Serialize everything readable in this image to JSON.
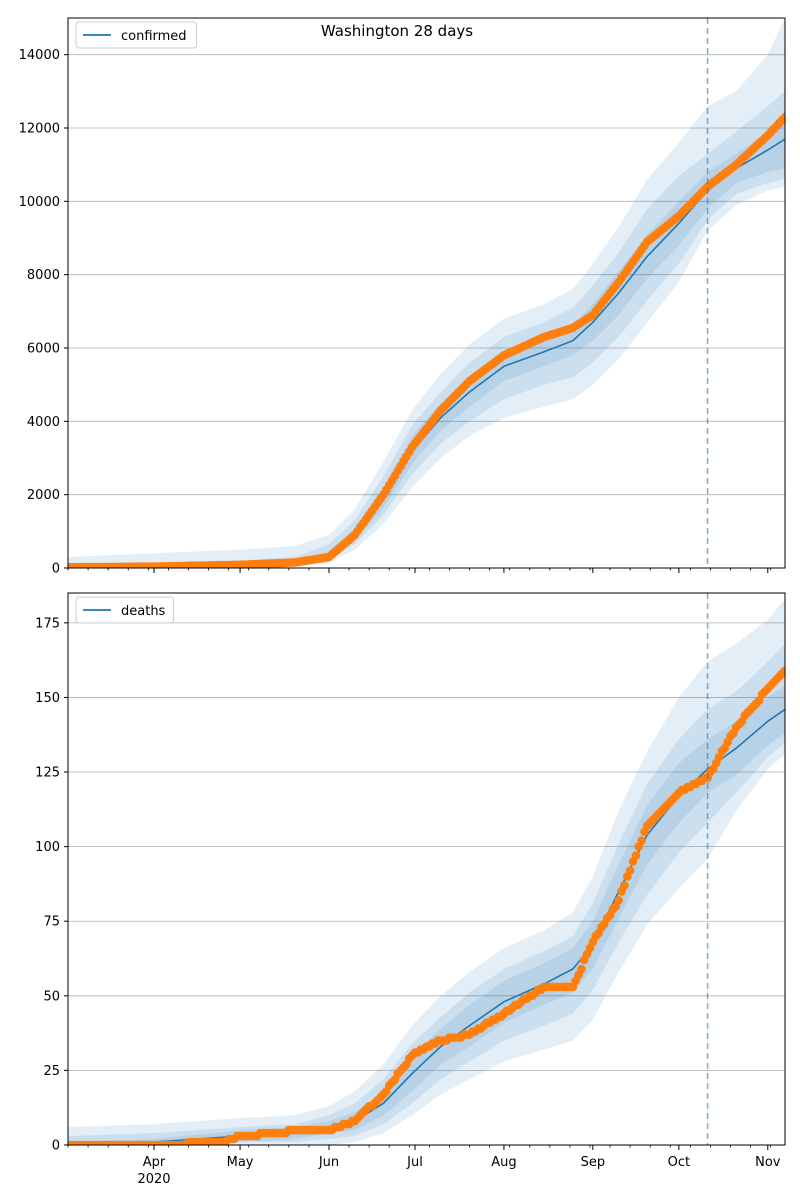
{
  "figure": {
    "title": "Washington 28 days",
    "colors": {
      "model": "#1f77b4",
      "observed": "#ff7f0e",
      "band": "#1f77b4",
      "grid": "#b0b0b0"
    }
  },
  "chart_data": [
    {
      "type": "line",
      "xaxis": {
        "type": "date",
        "range": [
          "2020-03-02",
          "2020-11-07"
        ],
        "ticks": [
          {
            "date": "2020-04-01",
            "label": "Apr",
            "sublabel": "2020"
          },
          {
            "date": "2020-05-01",
            "label": "May"
          },
          {
            "date": "2020-06-01",
            "label": "Jun"
          },
          {
            "date": "2020-07-01",
            "label": "Jul"
          },
          {
            "date": "2020-08-01",
            "label": "Aug"
          },
          {
            "date": "2020-09-01",
            "label": "Sep"
          },
          {
            "date": "2020-10-01",
            "label": "Oct"
          },
          {
            "date": "2020-11-01",
            "label": "Nov"
          }
        ]
      },
      "ylim": [
        0,
        15000
      ],
      "yticks": [
        0,
        2000,
        4000,
        6000,
        8000,
        10000,
        12000,
        14000
      ],
      "grid": "horizontal",
      "legend": {
        "entries": [
          "confirmed"
        ],
        "placement": "top-left"
      },
      "forecast_start": "2020-10-11",
      "model": {
        "name": "confirmed",
        "points": [
          [
            "2020-03-02",
            20
          ],
          [
            "2020-04-01",
            40
          ],
          [
            "2020-05-01",
            90
          ],
          [
            "2020-05-20",
            150
          ],
          [
            "2020-06-01",
            350
          ],
          [
            "2020-06-10",
            900
          ],
          [
            "2020-06-20",
            1900
          ],
          [
            "2020-06-30",
            3200
          ],
          [
            "2020-07-10",
            4100
          ],
          [
            "2020-07-20",
            4800
          ],
          [
            "2020-08-01",
            5500
          ],
          [
            "2020-08-15",
            5900
          ],
          [
            "2020-08-25",
            6200
          ],
          [
            "2020-09-01",
            6700
          ],
          [
            "2020-09-10",
            7500
          ],
          [
            "2020-09-20",
            8500
          ],
          [
            "2020-10-01",
            9400
          ],
          [
            "2020-10-11",
            10300
          ],
          [
            "2020-10-21",
            10900
          ],
          [
            "2020-11-01",
            11400
          ],
          [
            "2020-11-07",
            11700
          ]
        ],
        "bands": [
          {
            "level": "outer",
            "lower": [
              0,
              0,
              0,
              20,
              150,
              500,
              1200,
              2200,
              3000,
              3600,
              4100,
              4400,
              4600,
              5000,
              5700,
              6700,
              7800,
              9200,
              9900,
              10300,
              10400
            ],
            "upper": [
              300,
              400,
              500,
              600,
              900,
              1600,
              2900,
              4300,
              5300,
              6100,
              6800,
              7200,
              7600,
              8300,
              9300,
              10600,
              11600,
              12600,
              13000,
              14000,
              15000
            ]
          },
          {
            "level": "middle",
            "lower": [
              0,
              10,
              40,
              70,
              220,
              650,
              1450,
              2550,
              3400,
              4000,
              4600,
              5000,
              5200,
              5600,
              6300,
              7300,
              8300,
              9500,
              10200,
              10500,
              10600
            ],
            "upper": [
              100,
              150,
              200,
              300,
              650,
              1300,
              2500,
              3900,
              4800,
              5600,
              6300,
              6700,
              7100,
              7700,
              8600,
              9800,
              10700,
              11300,
              11900,
              12600,
              13000
            ]
          },
          {
            "level": "inner",
            "lower": [
              10,
              30,
              70,
              120,
              280,
              750,
              1650,
              2850,
              3750,
              4400,
              5100,
              5500,
              5800,
              6200,
              6900,
              7900,
              8800,
              9800,
              10500,
              10800,
              10900
            ],
            "upper": [
              40,
              60,
              120,
              200,
              450,
              1100,
              2200,
              3600,
              4500,
              5200,
              5900,
              6300,
              6600,
              7200,
              8100,
              9100,
              10000,
              10800,
              11300,
              11900,
              12300
            ]
          }
        ]
      },
      "observed": {
        "dates": [
          "2020-03-02",
          "2020-04-01",
          "2020-05-01",
          "2020-05-20",
          "2020-06-01",
          "2020-06-10",
          "2020-06-20",
          "2020-06-30",
          "2020-07-10",
          "2020-07-20",
          "2020-08-01",
          "2020-08-15",
          "2020-08-25",
          "2020-09-01",
          "2020-09-10",
          "2020-09-20",
          "2020-10-01",
          "2020-10-11",
          "2020-10-21",
          "2020-11-01",
          "2020-11-07"
        ],
        "values": [
          20,
          40,
          90,
          150,
          300,
          900,
          2000,
          3300,
          4300,
          5100,
          5800,
          6300,
          6550,
          6900,
          7800,
          8900,
          9600,
          10400,
          11000,
          11800,
          12300
        ]
      }
    },
    {
      "type": "line",
      "xaxis": {
        "type": "date",
        "range": [
          "2020-03-02",
          "2020-11-07"
        ],
        "ticks": [
          {
            "date": "2020-04-01",
            "label": "Apr",
            "sublabel": "2020"
          },
          {
            "date": "2020-05-01",
            "label": "May"
          },
          {
            "date": "2020-06-01",
            "label": "Jun"
          },
          {
            "date": "2020-07-01",
            "label": "Jul"
          },
          {
            "date": "2020-08-01",
            "label": "Aug"
          },
          {
            "date": "2020-09-01",
            "label": "Sep"
          },
          {
            "date": "2020-10-01",
            "label": "Oct"
          },
          {
            "date": "2020-11-01",
            "label": "Nov"
          }
        ]
      },
      "ylim": [
        0,
        185
      ],
      "yticks": [
        0,
        25,
        50,
        75,
        100,
        125,
        150,
        175
      ],
      "grid": "horizontal",
      "legend": {
        "entries": [
          "deaths"
        ],
        "placement": "top-left"
      },
      "forecast_start": "2020-10-11",
      "model": {
        "name": "deaths",
        "points": [
          [
            "2020-03-02",
            0
          ],
          [
            "2020-04-01",
            1
          ],
          [
            "2020-05-01",
            3
          ],
          [
            "2020-05-20",
            4
          ],
          [
            "2020-06-01",
            6
          ],
          [
            "2020-06-10",
            8
          ],
          [
            "2020-06-20",
            14
          ],
          [
            "2020-06-30",
            24
          ],
          [
            "2020-07-10",
            33
          ],
          [
            "2020-07-20",
            40
          ],
          [
            "2020-08-01",
            48
          ],
          [
            "2020-08-15",
            54
          ],
          [
            "2020-08-25",
            59
          ],
          [
            "2020-09-01",
            67
          ],
          [
            "2020-09-10",
            85
          ],
          [
            "2020-09-20",
            104
          ],
          [
            "2020-10-01",
            117
          ],
          [
            "2020-10-11",
            126
          ],
          [
            "2020-10-21",
            133
          ],
          [
            "2020-11-01",
            142
          ],
          [
            "2020-11-07",
            146
          ]
        ],
        "bands": [
          {
            "level": "outer",
            "lower": [
              0,
              0,
              0,
              0,
              0,
              1,
              4,
              10,
              17,
              22,
              28,
              32,
              35,
              42,
              58,
              74,
              86,
              96,
              112,
              126,
              131
            ],
            "upper": [
              6,
              7,
              9,
              10,
              13,
              18,
              27,
              40,
              50,
              58,
              66,
              72,
              78,
              90,
              112,
              132,
              150,
              162,
              168,
              176,
              183
            ]
          },
          {
            "level": "middle",
            "lower": [
              0,
              0,
              1,
              1,
              2,
              3,
              7,
              14,
              22,
              28,
              35,
              40,
              44,
              52,
              68,
              84,
              98,
              108,
              118,
              130,
              135
            ],
            "upper": [
              3,
              4,
              6,
              7,
              10,
              14,
              22,
              34,
              43,
              51,
              59,
              65,
              70,
              81,
              101,
              121,
              136,
              146,
              152,
              162,
              168
            ]
          },
          {
            "level": "inner",
            "lower": [
              0,
              0,
              1,
              2,
              4,
              5,
              10,
              18,
              27,
              33,
              41,
              47,
              51,
              59,
              76,
              94,
              108,
              118,
              124,
              134,
              138
            ],
            "upper": [
              1,
              2,
              5,
              6,
              8,
              11,
              18,
              30,
              39,
              47,
              55,
              61,
              66,
              75,
              94,
              114,
              128,
              136,
              142,
              150,
              154
            ]
          }
        ]
      },
      "observed": {
        "dates": [
          "2020-03-02",
          "2020-04-01",
          "2020-04-25",
          "2020-05-01",
          "2020-05-15",
          "2020-05-20",
          "2020-06-01",
          "2020-06-10",
          "2020-06-20",
          "2020-06-30",
          "2020-07-10",
          "2020-07-20",
          "2020-08-01",
          "2020-08-15",
          "2020-08-25",
          "2020-09-01",
          "2020-09-10",
          "2020-09-20",
          "2020-10-01",
          "2020-10-11",
          "2020-10-21",
          "2020-11-01",
          "2020-11-07"
        ],
        "values": [
          0,
          0,
          1,
          3,
          4,
          5,
          5,
          8,
          17,
          30,
          35,
          37,
          44,
          53,
          53,
          68,
          82,
          107,
          118,
          123,
          140,
          153,
          159
        ]
      }
    }
  ]
}
